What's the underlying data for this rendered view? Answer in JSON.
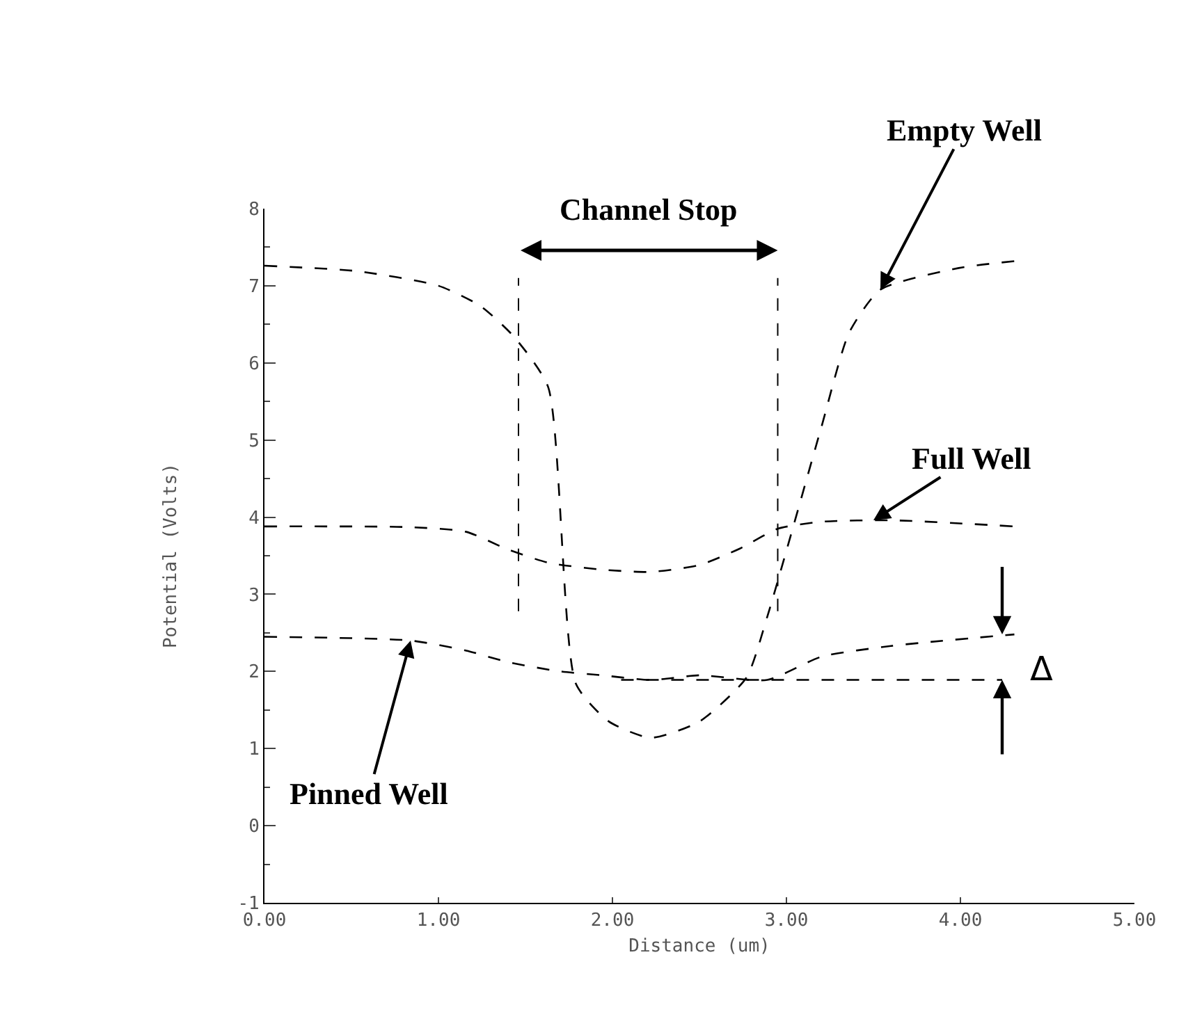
{
  "chart_data": {
    "type": "line",
    "xlabel": "Distance (um)",
    "ylabel": "Potential (Volts)",
    "xlim": [
      0,
      5
    ],
    "ylim": [
      -1,
      8
    ],
    "xticks": [
      {
        "value": 0,
        "label": "0.00"
      },
      {
        "value": 1,
        "label": "1.00"
      },
      {
        "value": 2,
        "label": "2.00"
      },
      {
        "value": 3,
        "label": "3.00"
      },
      {
        "value": 4,
        "label": "4.00"
      },
      {
        "value": 5,
        "label": "5.00"
      }
    ],
    "yticks": [
      -1,
      0,
      1,
      2,
      3,
      4,
      5,
      6,
      7,
      8
    ],
    "grid": false,
    "marker": "none",
    "line_style": "dashed",
    "series": [
      {
        "color": "#000000",
        "x": [
          0,
          0.53,
          1.0,
          1.24,
          1.43,
          1.63,
          1.79,
          1.98,
          2.22,
          2.5,
          2.77,
          2.89,
          3.2,
          3.36,
          3.54,
          3.99,
          4.31
        ],
        "values": [
          7.26,
          7.19,
          7.0,
          6.74,
          6.35,
          5.69,
          1.84,
          1.35,
          1.14,
          1.35,
          1.92,
          2.71,
          5.16,
          6.39,
          6.95,
          7.23,
          7.32
        ]
      },
      {
        "color": "#000000",
        "x": [
          0,
          0.84,
          1.16,
          1.39,
          1.63,
          1.94,
          2.22,
          2.5,
          2.73,
          2.95,
          3.2,
          3.6,
          4.31
        ],
        "values": [
          3.88,
          3.87,
          3.81,
          3.59,
          3.41,
          3.32,
          3.29,
          3.38,
          3.59,
          3.85,
          3.94,
          3.96,
          3.88
        ]
      },
      {
        "color": "#000000",
        "x": [
          0,
          0.84,
          1.16,
          1.4,
          1.7,
          1.94,
          2.22,
          2.5,
          2.89,
          3.2,
          3.6,
          4.31
        ],
        "values": [
          2.45,
          2.4,
          2.27,
          2.12,
          2.0,
          1.95,
          1.89,
          1.95,
          1.89,
          2.19,
          2.33,
          2.48
        ]
      },
      {
        "color": "#000000",
        "x": [
          2.05,
          4.24
        ],
        "values": [
          1.89,
          1.89
        ]
      }
    ],
    "ref_lines": [
      {
        "axis": "x",
        "value": 1.46,
        "line_style": "dashed",
        "color": "#000000"
      },
      {
        "axis": "x",
        "value": 2.95,
        "line_style": "dashed",
        "color": "#000000"
      }
    ],
    "annotations": [
      "Channel Stop",
      {
        "text": "Empty Well",
        "x": 3.54,
        "y": 6.95
      },
      {
        "text": "Full Well",
        "x": 3.5,
        "y": 3.96
      },
      {
        "text": "Pinned Well",
        "x": 0.84,
        "y": 2.4
      },
      {
        "text": "Δ",
        "x": 4.24,
        "y": 1.89
      }
    ]
  }
}
